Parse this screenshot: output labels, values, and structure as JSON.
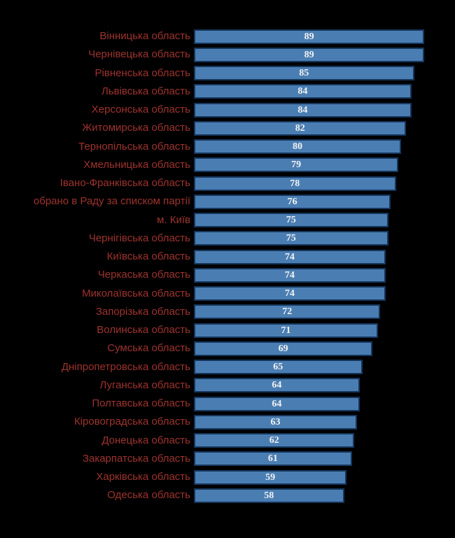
{
  "chart_data": {
    "type": "bar",
    "orientation": "horizontal",
    "title": "",
    "xlabel": "",
    "ylabel": "",
    "xlim": [
      0,
      100
    ],
    "grid": false,
    "legend": null,
    "categories": [
      "Вінницька область",
      "Чернівецька область",
      "Рівненська область",
      "Львівська область",
      "Херсонська область",
      "Житомирська область",
      "Тернопільська область",
      "Хмельницька область",
      "Івано-Франківська область",
      "обрано в Раду за списком партії",
      "м. Київ",
      "Чернігівська область",
      "Київська область",
      "Черкаська область",
      "Миколаївська область",
      "Запорізька область",
      "Волинська область",
      "Сумська область",
      "Дніпропетровська область",
      "Луганська область",
      "Полтавська область",
      "Кіровоградська область",
      "Донецька область",
      "Закарпатська область",
      "Харківська область",
      "Одеська область"
    ],
    "values": [
      89,
      89,
      85,
      84,
      84,
      82,
      80,
      79,
      78,
      76,
      75,
      75,
      74,
      74,
      74,
      72,
      71,
      69,
      65,
      64,
      64,
      63,
      62,
      61,
      59,
      58
    ],
    "colors": {
      "background": "#000000",
      "bar_fill": "#4a7eb3",
      "bar_border": "#16365c",
      "category_label": "#9e332e",
      "value_label": "#f2f2f2"
    }
  }
}
